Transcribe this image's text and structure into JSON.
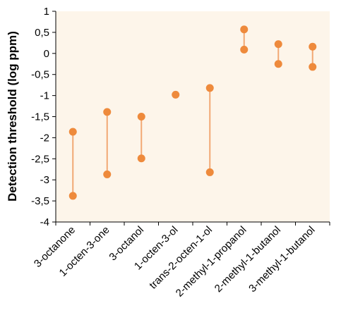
{
  "chart_data": {
    "type": "dumbbell",
    "title": "",
    "xlabel": "",
    "ylabel": "Detection threshold (log ppm)",
    "ylim": [
      -4,
      1
    ],
    "ytick_step": 0.5,
    "ytick_labels": [
      "1",
      "0,5",
      "0",
      "-0,5",
      "-1",
      "-1,5",
      "-2",
      "-2,5",
      "-3",
      "-3,5",
      "-4"
    ],
    "grid": false,
    "legend": "none",
    "categories": [
      "3-octanone",
      "1-octen-3-one",
      "3-octanol",
      "1-octen-3-ol",
      "trans-2-octen-1-ol",
      "2-methyl-1-propanol",
      "2-methyl-1-butanol",
      "3-methyl-1-butanol"
    ],
    "ranges": [
      {
        "low": -3.38,
        "high": -1.86
      },
      {
        "low": -2.87,
        "high": -1.39
      },
      {
        "low": -2.49,
        "high": -1.5
      },
      {
        "low": -0.98,
        "high": -0.98
      },
      {
        "low": -2.82,
        "high": -0.82
      },
      {
        "low": 0.09,
        "high": 0.57
      },
      {
        "low": -0.25,
        "high": 0.22
      },
      {
        "low": -0.32,
        "high": 0.16
      }
    ],
    "colors": {
      "plot_background": "#fdf5ea",
      "marker": "#ee8a3c",
      "range_line": "#f2a874",
      "axis": "#000000"
    }
  }
}
